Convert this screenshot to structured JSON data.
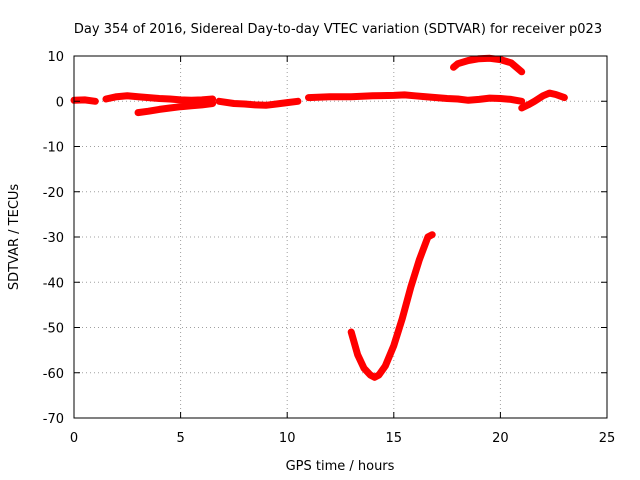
{
  "chart_data": {
    "type": "scatter",
    "title": "Day 354 of 2016, Sidereal Day-to-day VTEC variation (SDTVAR) for receiver p023",
    "xlabel": "GPS time / hours",
    "ylabel": "SDTVAR / TECUs",
    "xlim": [
      0,
      25
    ],
    "ylim": [
      -70,
      10
    ],
    "x_ticks": [
      0,
      5,
      10,
      15,
      20,
      25
    ],
    "y_ticks": [
      10,
      0,
      -10,
      -20,
      -30,
      -40,
      -50,
      -60,
      -70
    ],
    "grid": true,
    "color": "#ff0000",
    "series": [
      {
        "segments": [
          {
            "x": [
              0.0,
              0.5,
              1.0
            ],
            "y": [
              0.2,
              0.3,
              0.0
            ]
          },
          {
            "x": [
              1.5,
              2.0,
              2.5,
              3.0,
              3.5,
              4.0,
              4.5,
              5.0,
              5.5,
              6.0,
              6.5
            ],
            "y": [
              0.5,
              1.0,
              1.2,
              1.0,
              0.8,
              0.6,
              0.5,
              0.3,
              0.2,
              0.3,
              0.5
            ]
          },
          {
            "x": [
              3.0,
              3.5,
              4.0,
              4.5,
              5.0,
              5.5,
              6.0,
              6.5
            ],
            "y": [
              -2.5,
              -2.2,
              -1.8,
              -1.5,
              -1.2,
              -1.0,
              -0.8,
              -0.5
            ]
          },
          {
            "x": [
              6.8,
              7.5,
              8.0,
              8.5,
              9.0,
              9.5,
              10.0,
              10.5
            ],
            "y": [
              0.0,
              -0.5,
              -0.6,
              -0.8,
              -0.9,
              -0.6,
              -0.3,
              0.0
            ]
          },
          {
            "x": [
              11.0,
              12.0,
              13.0,
              14.0,
              15.0,
              15.5,
              16.0,
              16.5,
              17.0,
              17.5,
              18.0,
              18.5,
              19.0,
              19.5,
              20.0,
              20.5,
              21.0
            ],
            "y": [
              0.8,
              1.0,
              1.0,
              1.2,
              1.3,
              1.4,
              1.2,
              1.0,
              0.8,
              0.6,
              0.5,
              0.2,
              0.4,
              0.7,
              0.6,
              0.4,
              0.0
            ]
          },
          {
            "x": [
              21.0,
              21.3,
              21.6,
              22.0,
              22.3,
              22.6,
              23.0
            ],
            "y": [
              -1.5,
              -0.8,
              0.0,
              1.2,
              1.8,
              1.5,
              0.8
            ]
          },
          {
            "x": [
              17.8,
              18.0,
              18.5,
              19.0,
              19.5,
              20.0,
              20.5,
              21.0
            ],
            "y": [
              7.5,
              8.3,
              9.0,
              9.4,
              9.5,
              9.2,
              8.5,
              6.5
            ]
          },
          {
            "x": [
              13.0,
              13.3,
              13.6,
              13.9,
              14.1,
              14.3,
              14.6,
              15.0,
              15.4,
              15.8,
              16.2,
              16.6,
              16.8
            ],
            "y": [
              -51,
              -56,
              -59,
              -60.5,
              -61,
              -60.5,
              -58.5,
              -54,
              -48,
              -41,
              -35,
              -30,
              -29.5
            ]
          }
        ]
      }
    ]
  }
}
